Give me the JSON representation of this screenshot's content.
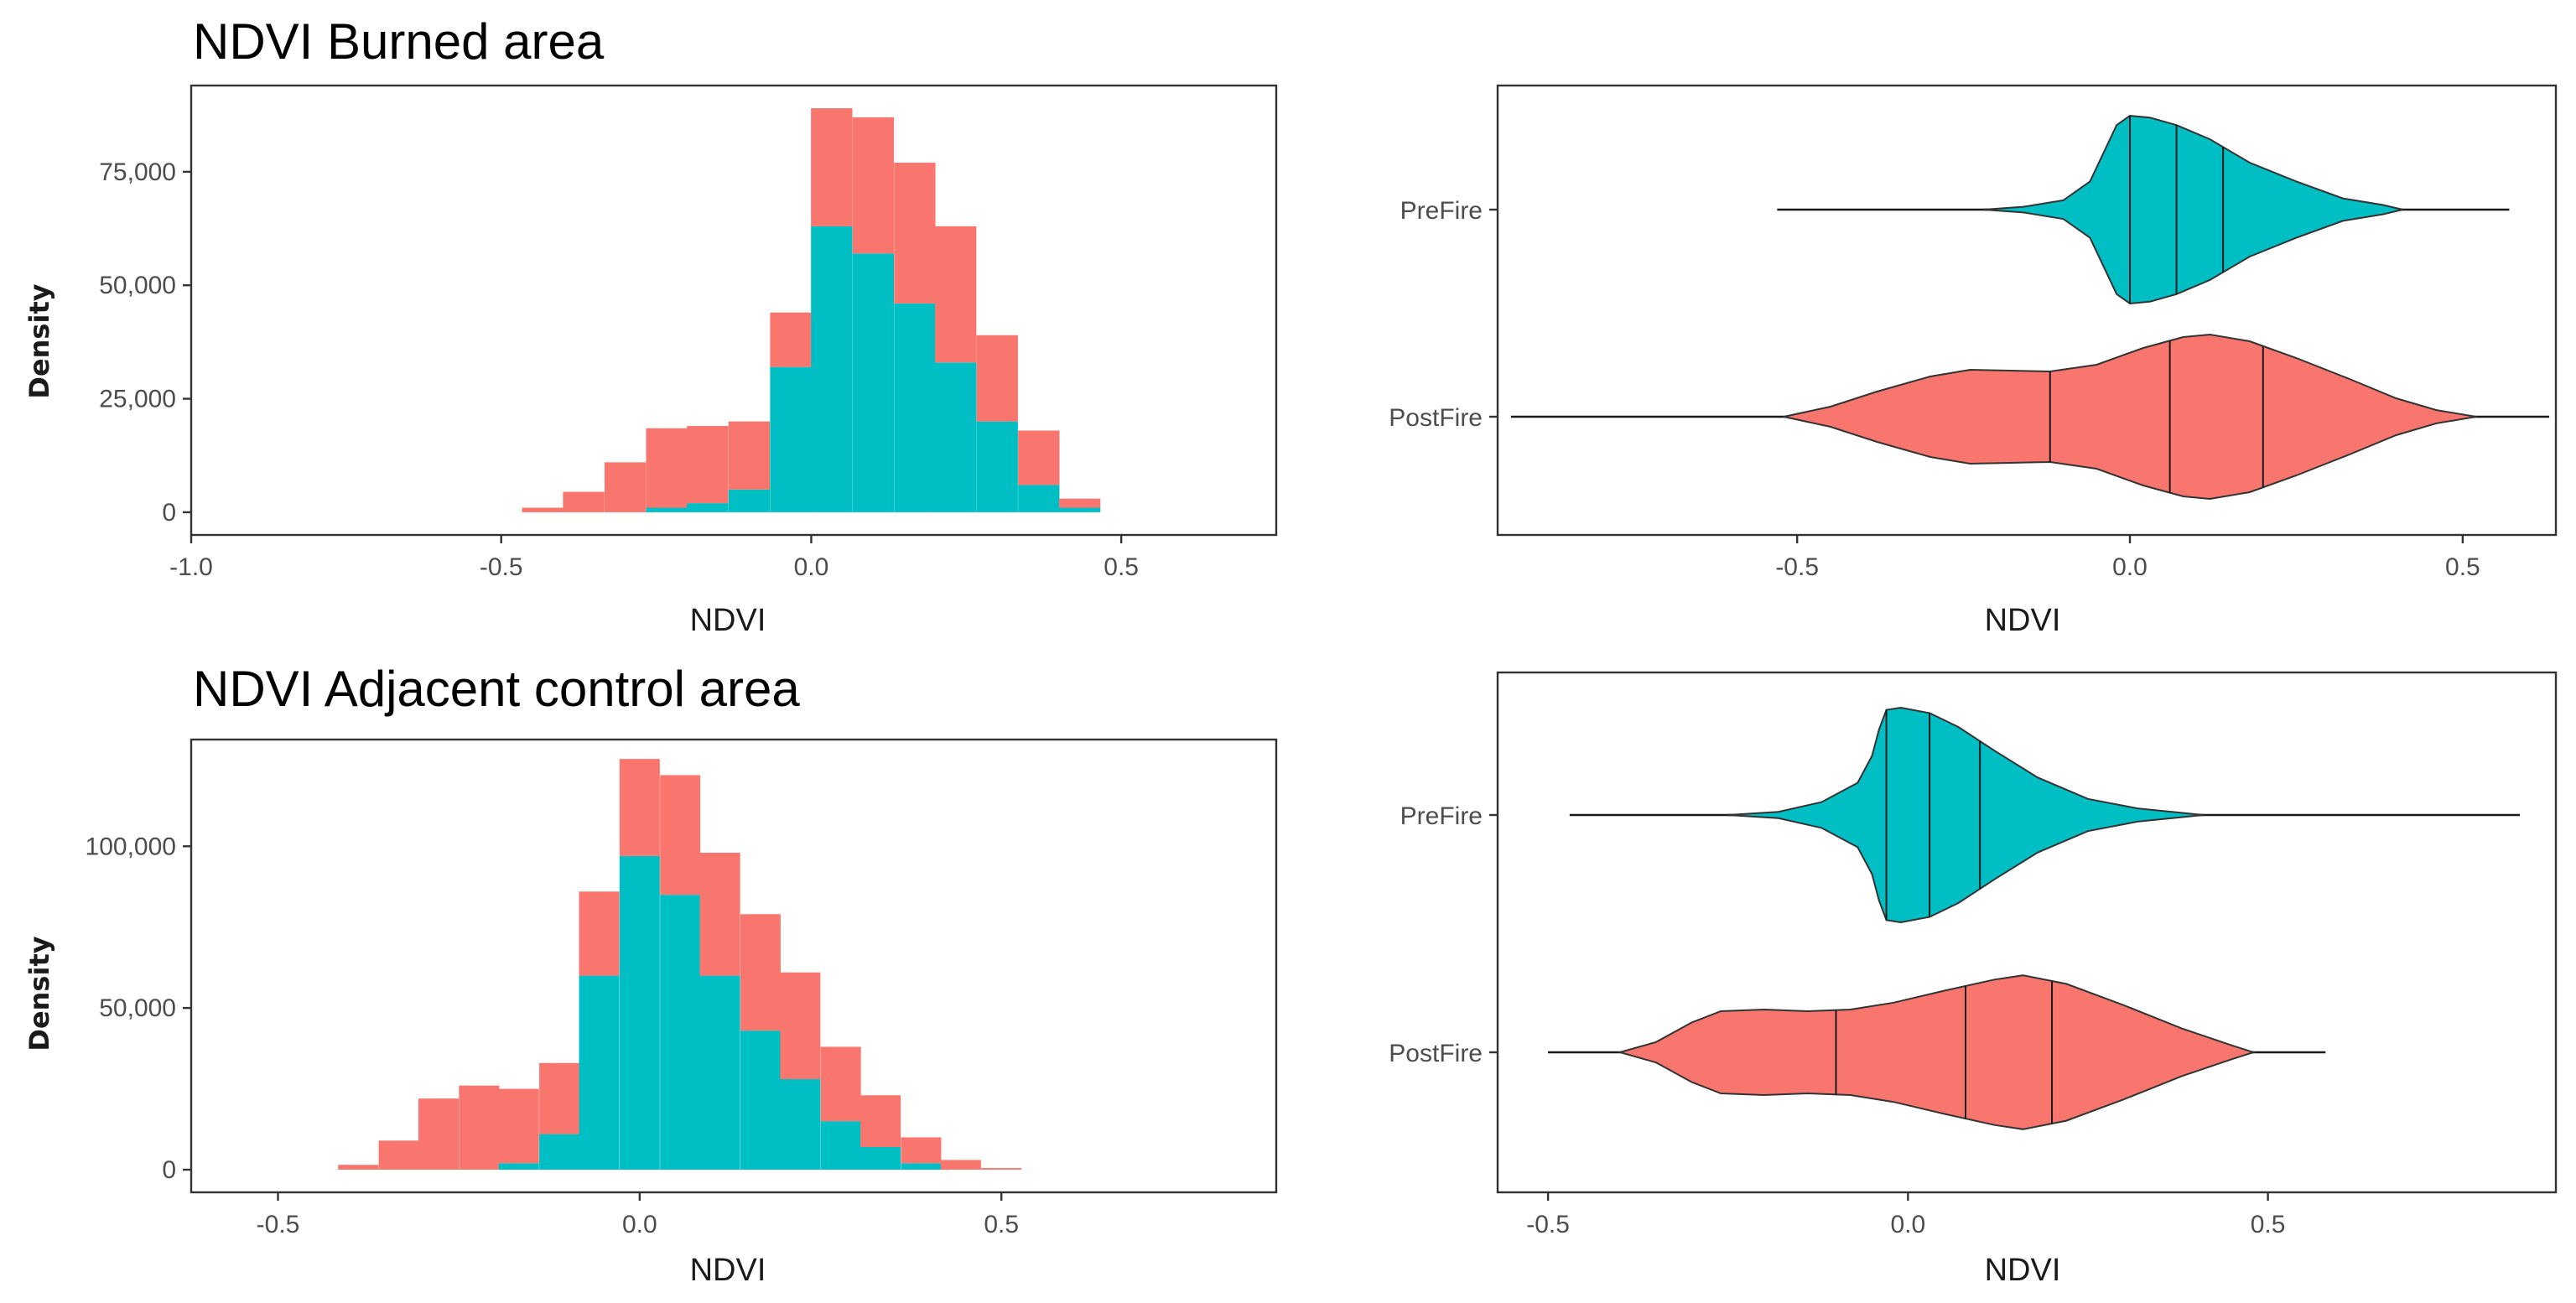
{
  "colors": {
    "prefire": "#00BFC4",
    "postfire": "#F8766D"
  },
  "chart_data": [
    {
      "id": "burned_hist",
      "type": "bar",
      "subtype": "stacked-histogram",
      "title": "NDVI Burned area",
      "xlabel": "NDVI",
      "ylabel": "Density",
      "xlim": [
        -1.0,
        0.75
      ],
      "ylim": [
        -5000,
        94000
      ],
      "xticks": [
        -1.0,
        -0.5,
        0.0,
        0.5
      ],
      "xtick_labels": [
        "-1.0",
        "-0.5",
        "0.0",
        "0.5"
      ],
      "yticks": [
        0,
        25000,
        50000,
        75000
      ],
      "ytick_labels": [
        "0",
        "25,000",
        "50,000",
        "75,000"
      ],
      "bin_width": 0.0667,
      "bin_centers": [
        -0.433,
        -0.367,
        -0.3,
        -0.233,
        -0.167,
        -0.1,
        -0.033,
        0.033,
        0.1,
        0.167,
        0.233,
        0.3,
        0.367,
        0.433
      ],
      "series": [
        {
          "name": "PreFire",
          "color": "#00BFC4",
          "values": [
            0,
            0,
            0,
            1000,
            2000,
            5000,
            32000,
            63000,
            57000,
            46000,
            33000,
            20000,
            6000,
            1000
          ]
        },
        {
          "name": "PostFire",
          "color": "#F8766D",
          "values": [
            1000,
            4500,
            11000,
            17500,
            17000,
            15000,
            12000,
            26000,
            30000,
            31000,
            30000,
            19000,
            12000,
            2000
          ]
        }
      ]
    },
    {
      "id": "burned_violin",
      "type": "violin",
      "xlabel": "NDVI",
      "ylabel": "",
      "xlim": [
        -0.95,
        0.64
      ],
      "xticks": [
        -0.5,
        0.0,
        0.5
      ],
      "xtick_labels": [
        "-0.5",
        "0.0",
        "0.5"
      ],
      "series": [
        {
          "name": "PreFire",
          "color": "#00BFC4",
          "whisker": [
            -0.53,
            0.57
          ],
          "whisker_bold": [
            -0.22,
            0.41
          ],
          "quantiles": [
            0.0,
            0.07,
            0.14
          ],
          "profile": [
            [
              -0.22,
              0.0
            ],
            [
              -0.16,
              0.03
            ],
            [
              -0.1,
              0.1
            ],
            [
              -0.06,
              0.3
            ],
            [
              -0.04,
              0.6
            ],
            [
              -0.02,
              0.9
            ],
            [
              0.0,
              1.0
            ],
            [
              0.03,
              0.98
            ],
            [
              0.07,
              0.9
            ],
            [
              0.12,
              0.75
            ],
            [
              0.18,
              0.5
            ],
            [
              0.25,
              0.3
            ],
            [
              0.32,
              0.12
            ],
            [
              0.38,
              0.05
            ],
            [
              0.41,
              0.0
            ]
          ]
        },
        {
          "name": "PostFire",
          "color": "#F8766D",
          "whisker": [
            -0.93,
            0.63
          ],
          "whisker_bold": [
            -0.52,
            0.52
          ],
          "quantiles": [
            -0.12,
            0.06,
            0.2
          ],
          "profile": [
            [
              -0.52,
              0.0
            ],
            [
              -0.45,
              0.12
            ],
            [
              -0.38,
              0.3
            ],
            [
              -0.3,
              0.48
            ],
            [
              -0.24,
              0.56
            ],
            [
              -0.18,
              0.55
            ],
            [
              -0.12,
              0.54
            ],
            [
              -0.05,
              0.62
            ],
            [
              0.02,
              0.82
            ],
            [
              0.08,
              0.95
            ],
            [
              0.12,
              0.98
            ],
            [
              0.18,
              0.9
            ],
            [
              0.25,
              0.7
            ],
            [
              0.33,
              0.45
            ],
            [
              0.4,
              0.22
            ],
            [
              0.46,
              0.08
            ],
            [
              0.52,
              0.0
            ]
          ]
        }
      ]
    },
    {
      "id": "control_hist",
      "type": "bar",
      "subtype": "stacked-histogram",
      "title": "NDVI Adjacent control area",
      "xlabel": "NDVI",
      "ylabel": "Density",
      "xlim": [
        -0.62,
        0.88
      ],
      "ylim": [
        -7000,
        133000
      ],
      "xticks": [
        -0.5,
        0.0,
        0.5
      ],
      "xtick_labels": [
        "-0.5",
        "0.0",
        "0.5"
      ],
      "yticks": [
        0,
        50000,
        100000
      ],
      "ytick_labels": [
        "0",
        "50,000",
        "100,000"
      ],
      "bin_width": 0.0556,
      "bin_centers": [
        -0.389,
        -0.333,
        -0.278,
        -0.222,
        -0.167,
        -0.111,
        -0.056,
        0.0,
        0.056,
        0.111,
        0.167,
        0.222,
        0.278,
        0.333,
        0.389,
        0.444,
        0.5
      ],
      "series": [
        {
          "name": "PreFire",
          "color": "#00BFC4",
          "values": [
            0,
            0,
            0,
            0,
            2000,
            11000,
            60000,
            97000,
            85000,
            60000,
            43000,
            28000,
            15000,
            7000,
            2000,
            0,
            0
          ]
        },
        {
          "name": "PostFire",
          "color": "#F8766D",
          "values": [
            1500,
            9000,
            22000,
            26000,
            23000,
            22000,
            26000,
            30000,
            37000,
            38000,
            36000,
            33000,
            23000,
            16000,
            8000,
            3000,
            500
          ]
        }
      ]
    },
    {
      "id": "control_violin",
      "type": "violin",
      "xlabel": "NDVI",
      "ylabel": "",
      "xlim": [
        -0.57,
        0.9
      ],
      "xticks": [
        -0.5,
        0.0,
        0.5
      ],
      "xtick_labels": [
        "-0.5",
        "0.0",
        "0.5"
      ],
      "series": [
        {
          "name": "PreFire",
          "color": "#00BFC4",
          "whisker": [
            -0.47,
            0.85
          ],
          "whisker_bold": [
            -0.25,
            0.41
          ],
          "quantiles": [
            -0.03,
            0.03,
            0.1
          ],
          "profile": [
            [
              -0.25,
              0.0
            ],
            [
              -0.18,
              0.03
            ],
            [
              -0.12,
              0.12
            ],
            [
              -0.07,
              0.3
            ],
            [
              -0.05,
              0.55
            ],
            [
              -0.04,
              0.8
            ],
            [
              -0.03,
              0.98
            ],
            [
              -0.01,
              1.0
            ],
            [
              0.03,
              0.95
            ],
            [
              0.07,
              0.82
            ],
            [
              0.12,
              0.6
            ],
            [
              0.18,
              0.35
            ],
            [
              0.25,
              0.15
            ],
            [
              0.32,
              0.06
            ],
            [
              0.38,
              0.02
            ],
            [
              0.41,
              0.0
            ]
          ]
        },
        {
          "name": "PostFire",
          "color": "#F8766D",
          "whisker": [
            -0.5,
            0.58
          ],
          "whisker_bold": [
            -0.4,
            0.48
          ],
          "quantiles": [
            -0.1,
            0.08,
            0.2
          ],
          "profile": [
            [
              -0.4,
              0.0
            ],
            [
              -0.35,
              0.12
            ],
            [
              -0.3,
              0.35
            ],
            [
              -0.26,
              0.48
            ],
            [
              -0.2,
              0.5
            ],
            [
              -0.14,
              0.48
            ],
            [
              -0.08,
              0.5
            ],
            [
              -0.02,
              0.58
            ],
            [
              0.05,
              0.72
            ],
            [
              0.12,
              0.85
            ],
            [
              0.16,
              0.9
            ],
            [
              0.22,
              0.8
            ],
            [
              0.3,
              0.55
            ],
            [
              0.38,
              0.28
            ],
            [
              0.45,
              0.08
            ],
            [
              0.48,
              0.0
            ]
          ]
        }
      ]
    }
  ]
}
